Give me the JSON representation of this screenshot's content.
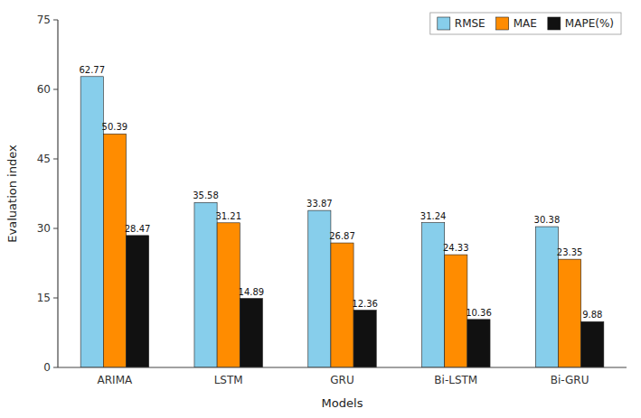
{
  "chart_data": {
    "type": "bar",
    "categories": [
      "ARIMA",
      "LSTM",
      "GRU",
      "Bi-LSTM",
      "Bi-GRU"
    ],
    "series": [
      {
        "name": "RMSE",
        "color": "#87CEEB",
        "values": [
          62.77,
          35.58,
          33.87,
          31.24,
          30.38
        ]
      },
      {
        "name": "MAE",
        "color": "#FF8C00",
        "values": [
          50.39,
          31.21,
          26.87,
          24.33,
          23.35
        ]
      },
      {
        "name": "MAPE(%)",
        "color": "#111111",
        "values": [
          28.47,
          14.89,
          12.36,
          10.36,
          9.88
        ]
      }
    ],
    "xlabel": "Models",
    "ylabel": "Evaluation index",
    "ylim": [
      0,
      75
    ],
    "yticks": [
      0,
      15,
      30,
      45,
      60,
      75
    ],
    "legend": "upper right",
    "data_labels": true
  }
}
